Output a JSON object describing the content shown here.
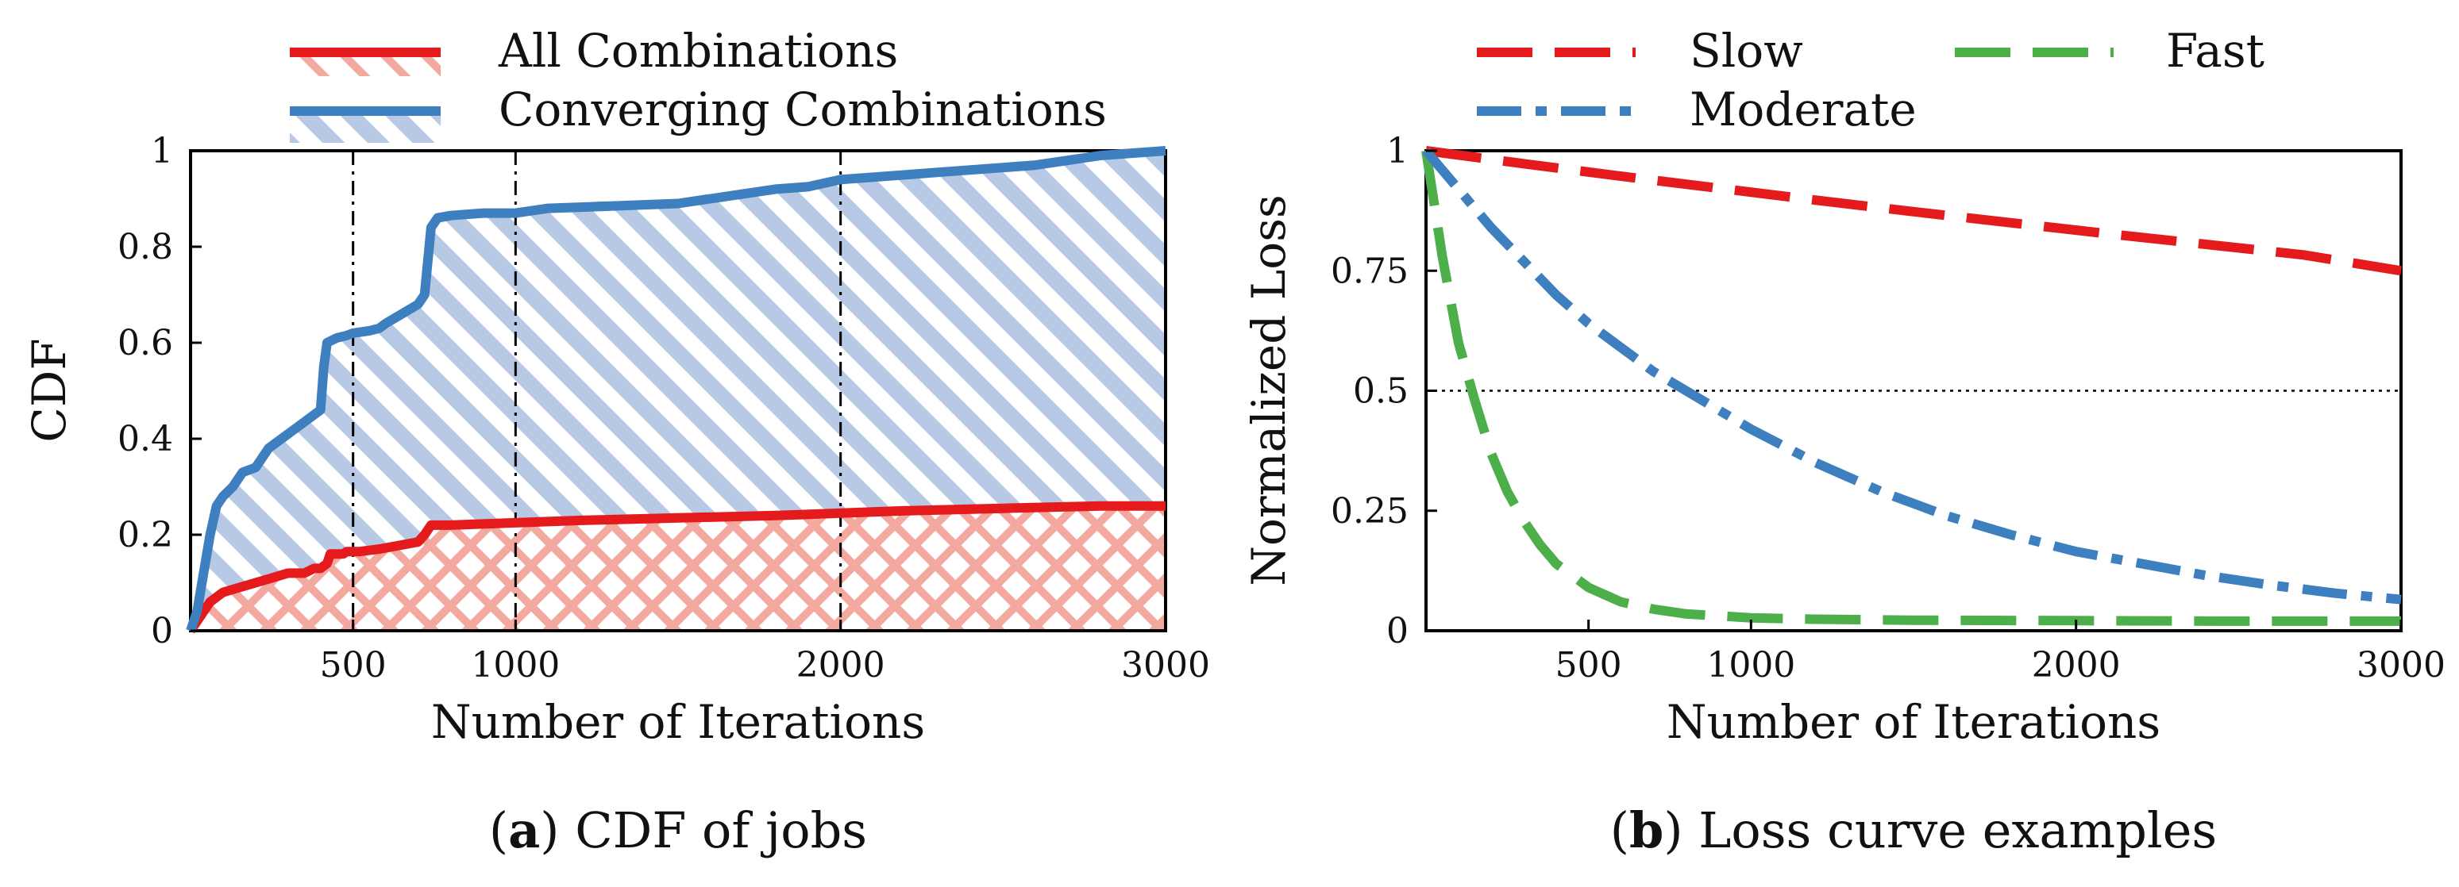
{
  "chart_data": [
    {
      "type": "line",
      "panel_label": "a",
      "caption": "CDF of jobs",
      "xlabel": "Number of Iterations",
      "ylabel": "CDF",
      "xlim": [
        0,
        3000
      ],
      "ylim": [
        0,
        1
      ],
      "xticks": [
        500,
        1000,
        2000,
        3000
      ],
      "xtick_labels": [
        "500",
        "1000",
        "2000",
        "3000"
      ],
      "yticks": [
        0,
        0.2,
        0.4,
        0.6,
        0.8,
        1
      ],
      "ytick_labels": [
        "0",
        "0.2",
        "0.4",
        "0.6",
        "0.8",
        "1"
      ],
      "vlines": [
        500,
        1000,
        2000,
        3000
      ],
      "legend_position": "top-center",
      "colors": {
        "red": "#e41a1c",
        "blue": "#3d7fbf",
        "red_hatch": "#f3a8a0",
        "blue_hatch": "#b7c9e4"
      },
      "series": [
        {
          "name": "All Combinations",
          "color": "#e41a1c",
          "x": [
            0,
            30,
            60,
            100,
            150,
            200,
            250,
            300,
            350,
            380,
            400,
            420,
            430,
            470,
            480,
            500,
            520,
            580,
            620,
            700,
            720,
            740,
            800,
            1000,
            1200,
            1500,
            1800,
            2000,
            2200,
            2500,
            2800,
            3000
          ],
          "y": [
            0,
            0.03,
            0.06,
            0.08,
            0.09,
            0.1,
            0.11,
            0.12,
            0.12,
            0.13,
            0.13,
            0.14,
            0.16,
            0.16,
            0.165,
            0.165,
            0.165,
            0.17,
            0.175,
            0.185,
            0.2,
            0.22,
            0.22,
            0.225,
            0.23,
            0.235,
            0.24,
            0.245,
            0.25,
            0.255,
            0.26,
            0.26
          ]
        },
        {
          "name": "Converging Combinations",
          "color": "#3d7fbf",
          "x": [
            0,
            20,
            40,
            60,
            80,
            100,
            130,
            160,
            200,
            240,
            280,
            320,
            360,
            380,
            400,
            410,
            420,
            450,
            480,
            500,
            550,
            580,
            600,
            650,
            700,
            720,
            740,
            760,
            800,
            900,
            1000,
            1050,
            1100,
            1300,
            1500,
            1600,
            1700,
            1800,
            1900,
            2000,
            2100,
            2200,
            2300,
            2400,
            2500,
            2600,
            2700,
            2800,
            2900,
            3000
          ],
          "y": [
            0,
            0.04,
            0.12,
            0.2,
            0.26,
            0.28,
            0.3,
            0.33,
            0.34,
            0.38,
            0.4,
            0.42,
            0.44,
            0.45,
            0.46,
            0.55,
            0.6,
            0.61,
            0.615,
            0.62,
            0.625,
            0.63,
            0.64,
            0.66,
            0.68,
            0.7,
            0.84,
            0.86,
            0.865,
            0.87,
            0.87,
            0.875,
            0.88,
            0.885,
            0.89,
            0.9,
            0.91,
            0.92,
            0.925,
            0.94,
            0.945,
            0.95,
            0.955,
            0.96,
            0.965,
            0.97,
            0.98,
            0.99,
            0.995,
            1.0
          ]
        }
      ]
    },
    {
      "type": "line",
      "panel_label": "b",
      "caption": "Loss curve examples",
      "xlabel": "Number of Iterations",
      "ylabel": "Normalized Loss",
      "xlim": [
        0,
        3000
      ],
      "ylim": [
        0,
        1
      ],
      "xticks": [
        500,
        1000,
        2000,
        3000
      ],
      "xtick_labels": [
        "500",
        "1000",
        "2000",
        "3000"
      ],
      "yticks": [
        0,
        0.25,
        0.5,
        0.75,
        1
      ],
      "ytick_labels": [
        "0",
        "0.25",
        "0.5",
        "0.75",
        "1"
      ],
      "hline": 0.5,
      "legend_position": "top",
      "series": [
        {
          "name": "Slow",
          "color": "#e41a1c",
          "style": "dashed",
          "x": [
            0,
            300,
            600,
            900,
            1200,
            1500,
            1800,
            2100,
            2400,
            2700,
            3000
          ],
          "y": [
            1.0,
            0.973,
            0.947,
            0.922,
            0.897,
            0.873,
            0.85,
            0.827,
            0.805,
            0.783,
            0.75
          ]
        },
        {
          "name": "Fast",
          "color": "#4daf4a",
          "style": "dashed",
          "x": [
            0,
            50,
            100,
            150,
            200,
            250,
            300,
            350,
            400,
            500,
            600,
            700,
            800,
            1000,
            1200,
            1500,
            2000,
            2500,
            3000
          ],
          "y": [
            1.0,
            0.78,
            0.6,
            0.48,
            0.37,
            0.29,
            0.23,
            0.18,
            0.14,
            0.09,
            0.06,
            0.045,
            0.035,
            0.027,
            0.024,
            0.022,
            0.021,
            0.02,
            0.02
          ]
        },
        {
          "name": "Moderate",
          "color": "#3d7fbf",
          "style": "dashdot",
          "x": [
            0,
            100,
            200,
            300,
            400,
            500,
            600,
            700,
            800,
            900,
            1000,
            1200,
            1400,
            1600,
            1800,
            2000,
            2200,
            2400,
            2600,
            2800,
            3000
          ],
          "y": [
            1.0,
            0.92,
            0.84,
            0.77,
            0.7,
            0.64,
            0.59,
            0.54,
            0.5,
            0.46,
            0.42,
            0.35,
            0.29,
            0.24,
            0.2,
            0.165,
            0.14,
            0.115,
            0.095,
            0.078,
            0.065
          ]
        }
      ]
    }
  ]
}
